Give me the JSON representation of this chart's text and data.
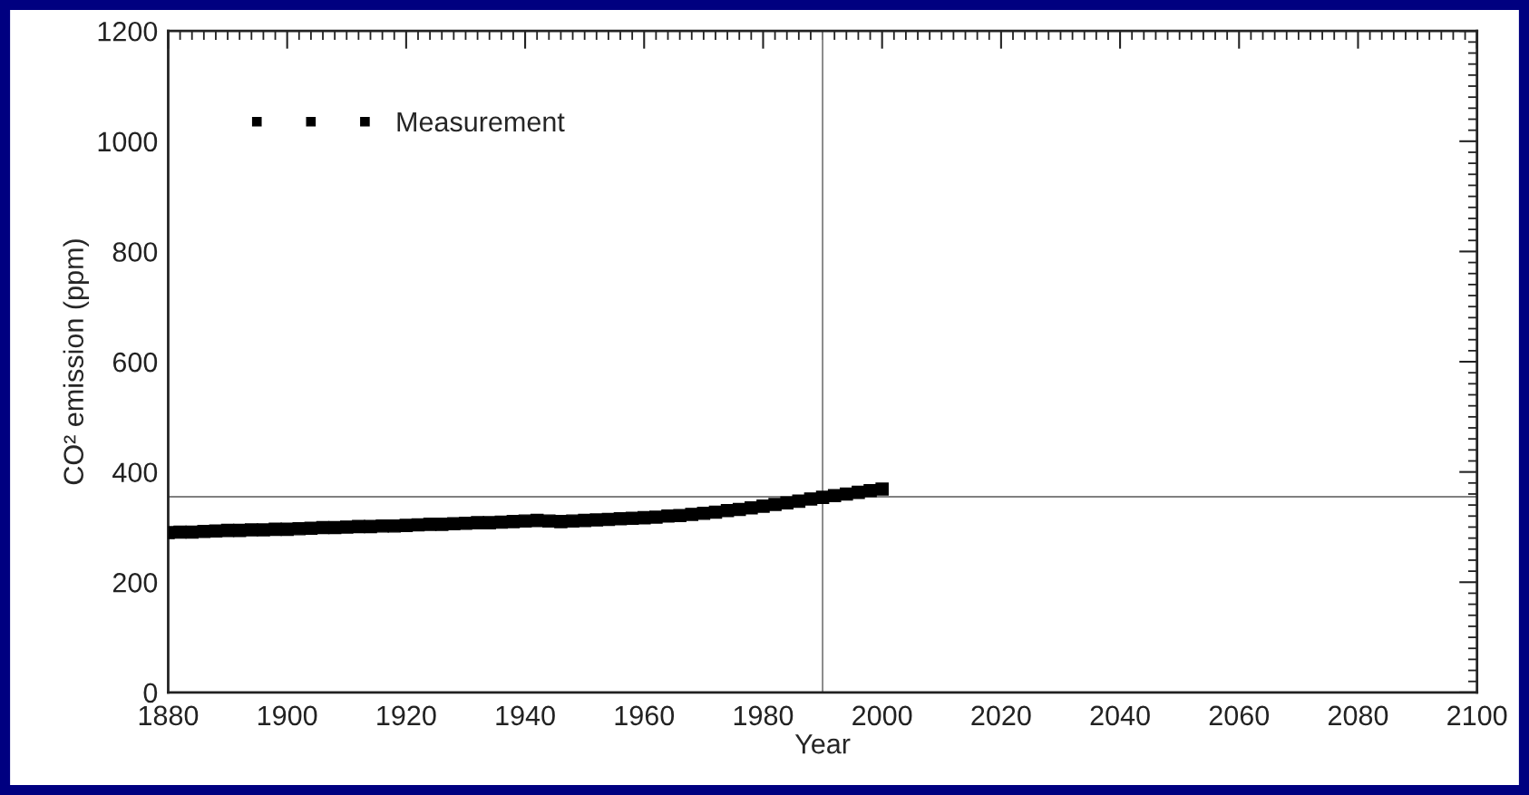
{
  "chart_data": {
    "type": "scatter",
    "xlabel": "Year",
    "ylabel": "CO² emission (ppm)",
    "xlim": [
      1880,
      2100
    ],
    "xticks": [
      1880,
      1900,
      1920,
      1940,
      1960,
      1980,
      2000,
      2020,
      2040,
      2060,
      2080,
      2100
    ],
    "ylim": [
      0,
      1200
    ],
    "yticks": [
      0,
      200,
      400,
      600,
      800,
      1000,
      1200
    ],
    "grid": false,
    "legend": "top left",
    "marker": "square",
    "ref_lines": [
      {
        "axis": "x",
        "value": 1990,
        "color": "#808080"
      },
      {
        "axis": "y",
        "value": 355,
        "color": "#808080"
      }
    ],
    "x": [
      1880,
      1882,
      1884,
      1886,
      1888,
      1890,
      1892,
      1894,
      1896,
      1898,
      1900,
      1902,
      1904,
      1906,
      1908,
      1910,
      1912,
      1914,
      1916,
      1918,
      1920,
      1922,
      1924,
      1926,
      1928,
      1930,
      1932,
      1934,
      1936,
      1938,
      1940,
      1942,
      1944,
      1946,
      1948,
      1950,
      1952,
      1954,
      1956,
      1958,
      1960,
      1962,
      1964,
      1966,
      1968,
      1970,
      1972,
      1974,
      1976,
      1978,
      1980,
      1982,
      1984,
      1986,
      1988,
      1990,
      1992,
      1994,
      1996,
      1998,
      2000
    ],
    "series": [
      {
        "name": "Measurement",
        "color": "#000000",
        "values": [
          290,
          291,
          291,
          292,
          293,
          294,
          294,
          295,
          295,
          296,
          296,
          297,
          298,
          299,
          299,
          300,
          301,
          301,
          302,
          302,
          303,
          304,
          305,
          305,
          306,
          307,
          308,
          308,
          309,
          310,
          311,
          312,
          311,
          310,
          311,
          312,
          313,
          314,
          315,
          316,
          317,
          318,
          320,
          321,
          323,
          325,
          327,
          330,
          332,
          335,
          338,
          341,
          344,
          347,
          351,
          354,
          357,
          360,
          363,
          366,
          369
        ]
      }
    ]
  }
}
